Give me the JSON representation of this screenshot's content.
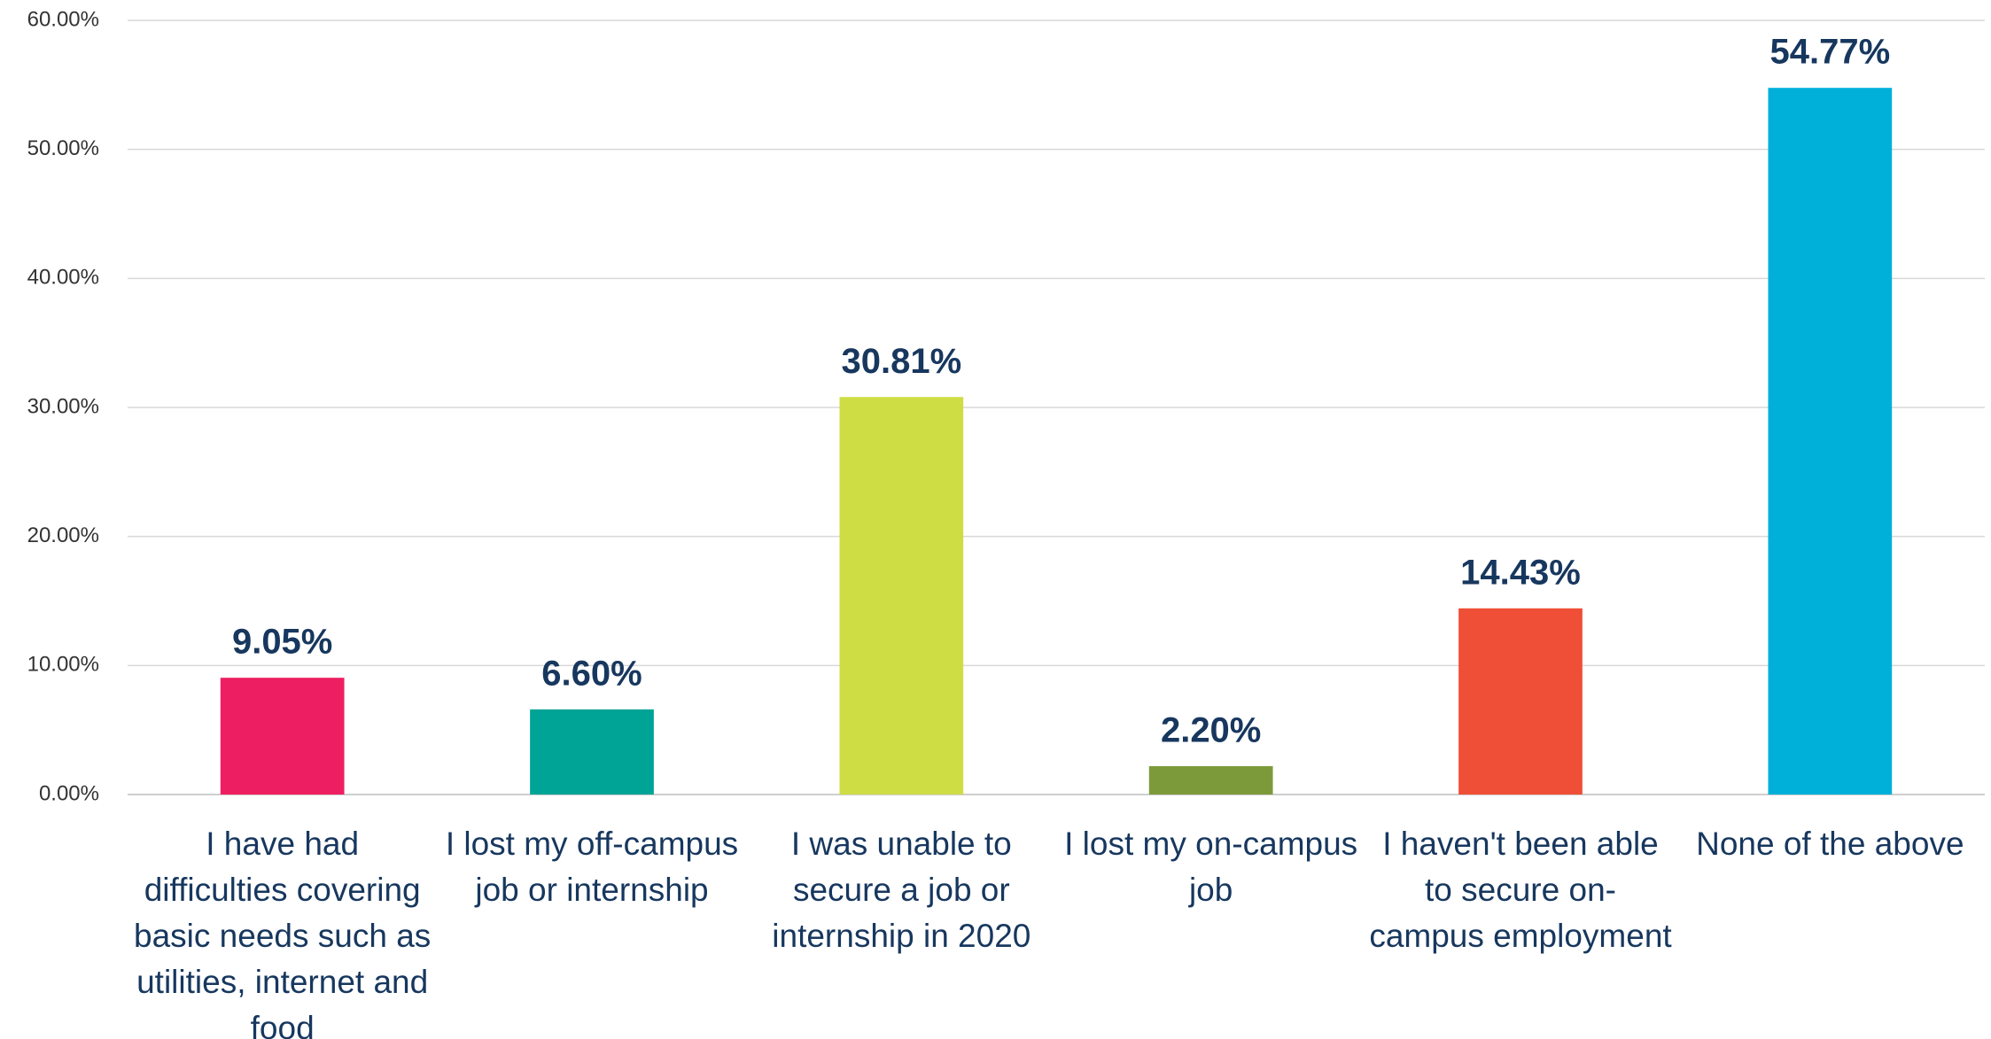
{
  "chart_data": {
    "type": "bar",
    "categories": [
      "I have had difficulties covering basic needs such as utilities, internet and food",
      "I lost my off-campus job or internship",
      "I was unable to secure a job or internship in 2020",
      "I lost my on-campus job",
      "I haven't been able to secure on-campus employment",
      "None of the above"
    ],
    "values": [
      9.05,
      6.6,
      30.81,
      2.2,
      14.43,
      54.77
    ],
    "value_labels": [
      "9.05%",
      "6.60%",
      "30.81%",
      "2.20%",
      "14.43%",
      "54.77%"
    ],
    "colors": [
      "#ed1e61",
      "#00a497",
      "#cfdd45",
      "#7d9a3a",
      "#ef4f37",
      "#00b0d9"
    ],
    "ylim": [
      0,
      60
    ],
    "yticks": [
      {
        "value": 0,
        "label": "0.00%"
      },
      {
        "value": 10,
        "label": "10.00%"
      },
      {
        "value": 20,
        "label": "20.00%"
      },
      {
        "value": 30,
        "label": "30.00%"
      },
      {
        "value": 40,
        "label": "40.00%"
      },
      {
        "value": 50,
        "label": "50.00%"
      },
      {
        "value": 60,
        "label": "60.00%"
      }
    ],
    "grid": true
  }
}
